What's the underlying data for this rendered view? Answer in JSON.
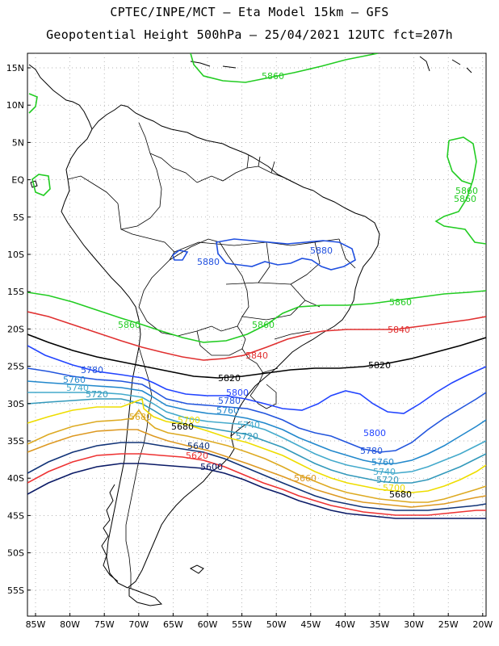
{
  "title_line1": "CPTEC/INPE/MCT –  Eta Model 15km – GFS",
  "title_line2": "Geopotential Height 500hPa – 25/04/2021 12UTC fct=207h",
  "lat_labels": [
    "15N",
    "10N",
    "5N",
    "EQ",
    "5S",
    "10S",
    "15S",
    "20S",
    "25S",
    "30S",
    "35S",
    "40S",
    "45S",
    "50S",
    "55S"
  ],
  "lon_labels": [
    "85W",
    "80W",
    "75W",
    "70W",
    "65W",
    "60W",
    "55W",
    "50W",
    "45W",
    "40W",
    "35W",
    "30W",
    "25W",
    "20W"
  ],
  "contour_labels": {
    "top_5860": "5860",
    "equator_5860a": "5860",
    "equator_5860b": "5860",
    "amazon_5880a": "5880",
    "amazon_5880b": "5880",
    "c5860_west": "5860",
    "c5860_mid": "5860",
    "c5860_east": "5860",
    "c5840_mid": "5840",
    "c5840_east": "5840",
    "c5820_mid": "5820",
    "c5820_east": "5820",
    "c5780_west": "5780",
    "c5760_west": "5760",
    "c5740_west": "5740",
    "c5720_west": "5720",
    "c5800_mid": "5800",
    "c5780_mid": "5780",
    "c5760_mid": "5760",
    "c5680_andes": "5680",
    "c5700_mid": "5700",
    "c5680_mid": "5680",
    "c5740_mid": "5740",
    "c5720_mid": "5720",
    "c5640_mid": "5640",
    "c5620_mid": "5620",
    "c5600_mid": "5600",
    "c5800_east": "5800",
    "c5780_east": "5780",
    "c5760_east": "5760",
    "c5740_east": "5740",
    "c5720_east": "5720",
    "c5700_east": "5700",
    "c5680_east": "5680",
    "c5660_east": "5660"
  },
  "colors": {
    "c5880": "#2050e0",
    "c5860": "#22cc22",
    "c5840": "#e03030",
    "c5820": "#000000",
    "c5800": "#2244ff",
    "c5780": "#2255dd",
    "c5760": "#2288cc",
    "c5740": "#44aacc",
    "c5720": "#3399bb",
    "c5700": "#eedd00",
    "c5680": "#ddaa22",
    "c5660": "#dd9922",
    "c5640": "#113377",
    "c5620": "#ee3333",
    "c5600": "#0a1a66"
  }
}
